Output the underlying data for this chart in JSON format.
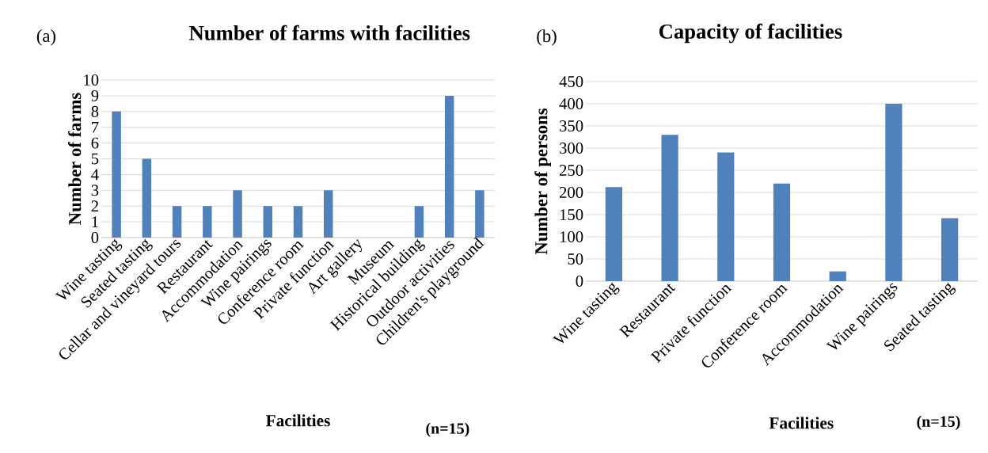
{
  "chart_data": [
    {
      "type": "bar",
      "title": "Number of farms with facilities",
      "xlabel": "Facilities",
      "ylabel": "Number of farms",
      "categories": [
        "Wine tasting",
        "Seated tasting",
        "Cellar and vineyard tours",
        "Restaurant",
        "Accommodation",
        "Wine pairings",
        "Conference room",
        "Private function",
        "Art gallery",
        "Museum",
        "Historical building",
        "Outdoor activities",
        "Children's playground"
      ],
      "values": [
        8,
        5,
        2,
        2,
        3,
        2,
        2,
        3,
        0,
        0,
        2,
        9,
        3
      ],
      "color": "#4f81bd",
      "ylim": [
        0,
        10
      ],
      "yticks": [
        0,
        1,
        2,
        3,
        4,
        5,
        6,
        7,
        8,
        9,
        10
      ],
      "grid": "y",
      "annotations": [
        "(a)",
        "(n=15)"
      ]
    },
    {
      "type": "bar",
      "title": "Capacity of facilities",
      "xlabel": "Facilities",
      "ylabel": "Number of persons",
      "categories": [
        "Wine tasting",
        "Restaurant",
        "Private function",
        "Conference room",
        "Accommodation",
        "Wine pairings",
        "Seated tasting"
      ],
      "values": [
        212,
        330,
        290,
        220,
        22,
        400,
        142
      ],
      "color": "#4f81bd",
      "ylim": [
        0,
        450
      ],
      "yticks": [
        0,
        50,
        100,
        150,
        200,
        250,
        300,
        350,
        400,
        450
      ],
      "grid": "y",
      "annotations": [
        "(b)",
        "(n=15)"
      ]
    }
  ]
}
